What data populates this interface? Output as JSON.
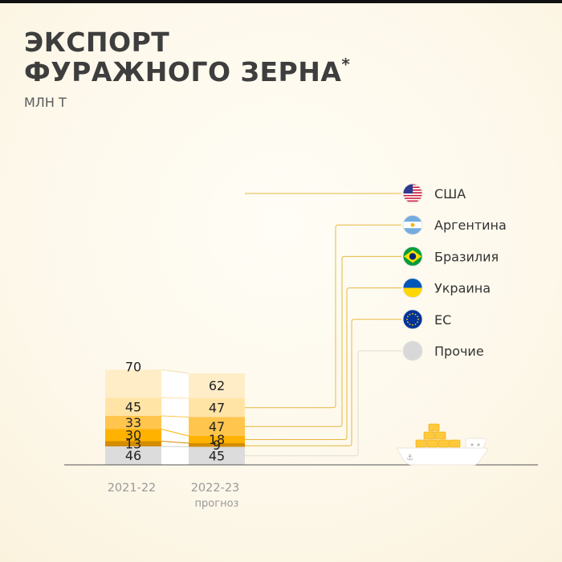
{
  "header": {
    "title_line1": "ЭКСПОРТ",
    "title_line2": "ФУРАЖНОГО ЗЕРНА",
    "title_mark": "*",
    "subtitle": "МЛН Т"
  },
  "chart_data": {
    "type": "bar",
    "stacked": true,
    "categories": [
      "2021-22",
      "2022-23"
    ],
    "category_notes": [
      "",
      "прогноз"
    ],
    "units": "МЛН Т",
    "series": [
      {
        "name": "Прочие",
        "values": [
          46,
          45
        ],
        "color": "#dcdcdc",
        "icon": "gray-circle-icon"
      },
      {
        "name": "ЕС",
        "values": [
          13,
          9
        ],
        "color": "#d48c00",
        "icon": "eu-flag-icon"
      },
      {
        "name": "Украина",
        "values": [
          30,
          18
        ],
        "color": "#ffb300",
        "icon": "ukraine-flag-icon"
      },
      {
        "name": "Бразилия",
        "values": [
          33,
          47
        ],
        "color": "#ffc54d",
        "icon": "brazil-flag-icon"
      },
      {
        "name": "Аргентина",
        "values": [
          45,
          47
        ],
        "color": "#ffe4a6",
        "icon": "argentina-flag-icon"
      },
      {
        "name": "США",
        "values": [
          70,
          62
        ],
        "color": "#ffedc8",
        "icon": "usa-flag-icon"
      }
    ],
    "legend_order": [
      "США",
      "Аргентина",
      "Бразилия",
      "Украина",
      "ЕС",
      "Прочие"
    ],
    "legend_placement": "right",
    "connector_color": "#e8b740",
    "grid": false
  },
  "decoration": {
    "ship": "cargo-ship-icon"
  }
}
